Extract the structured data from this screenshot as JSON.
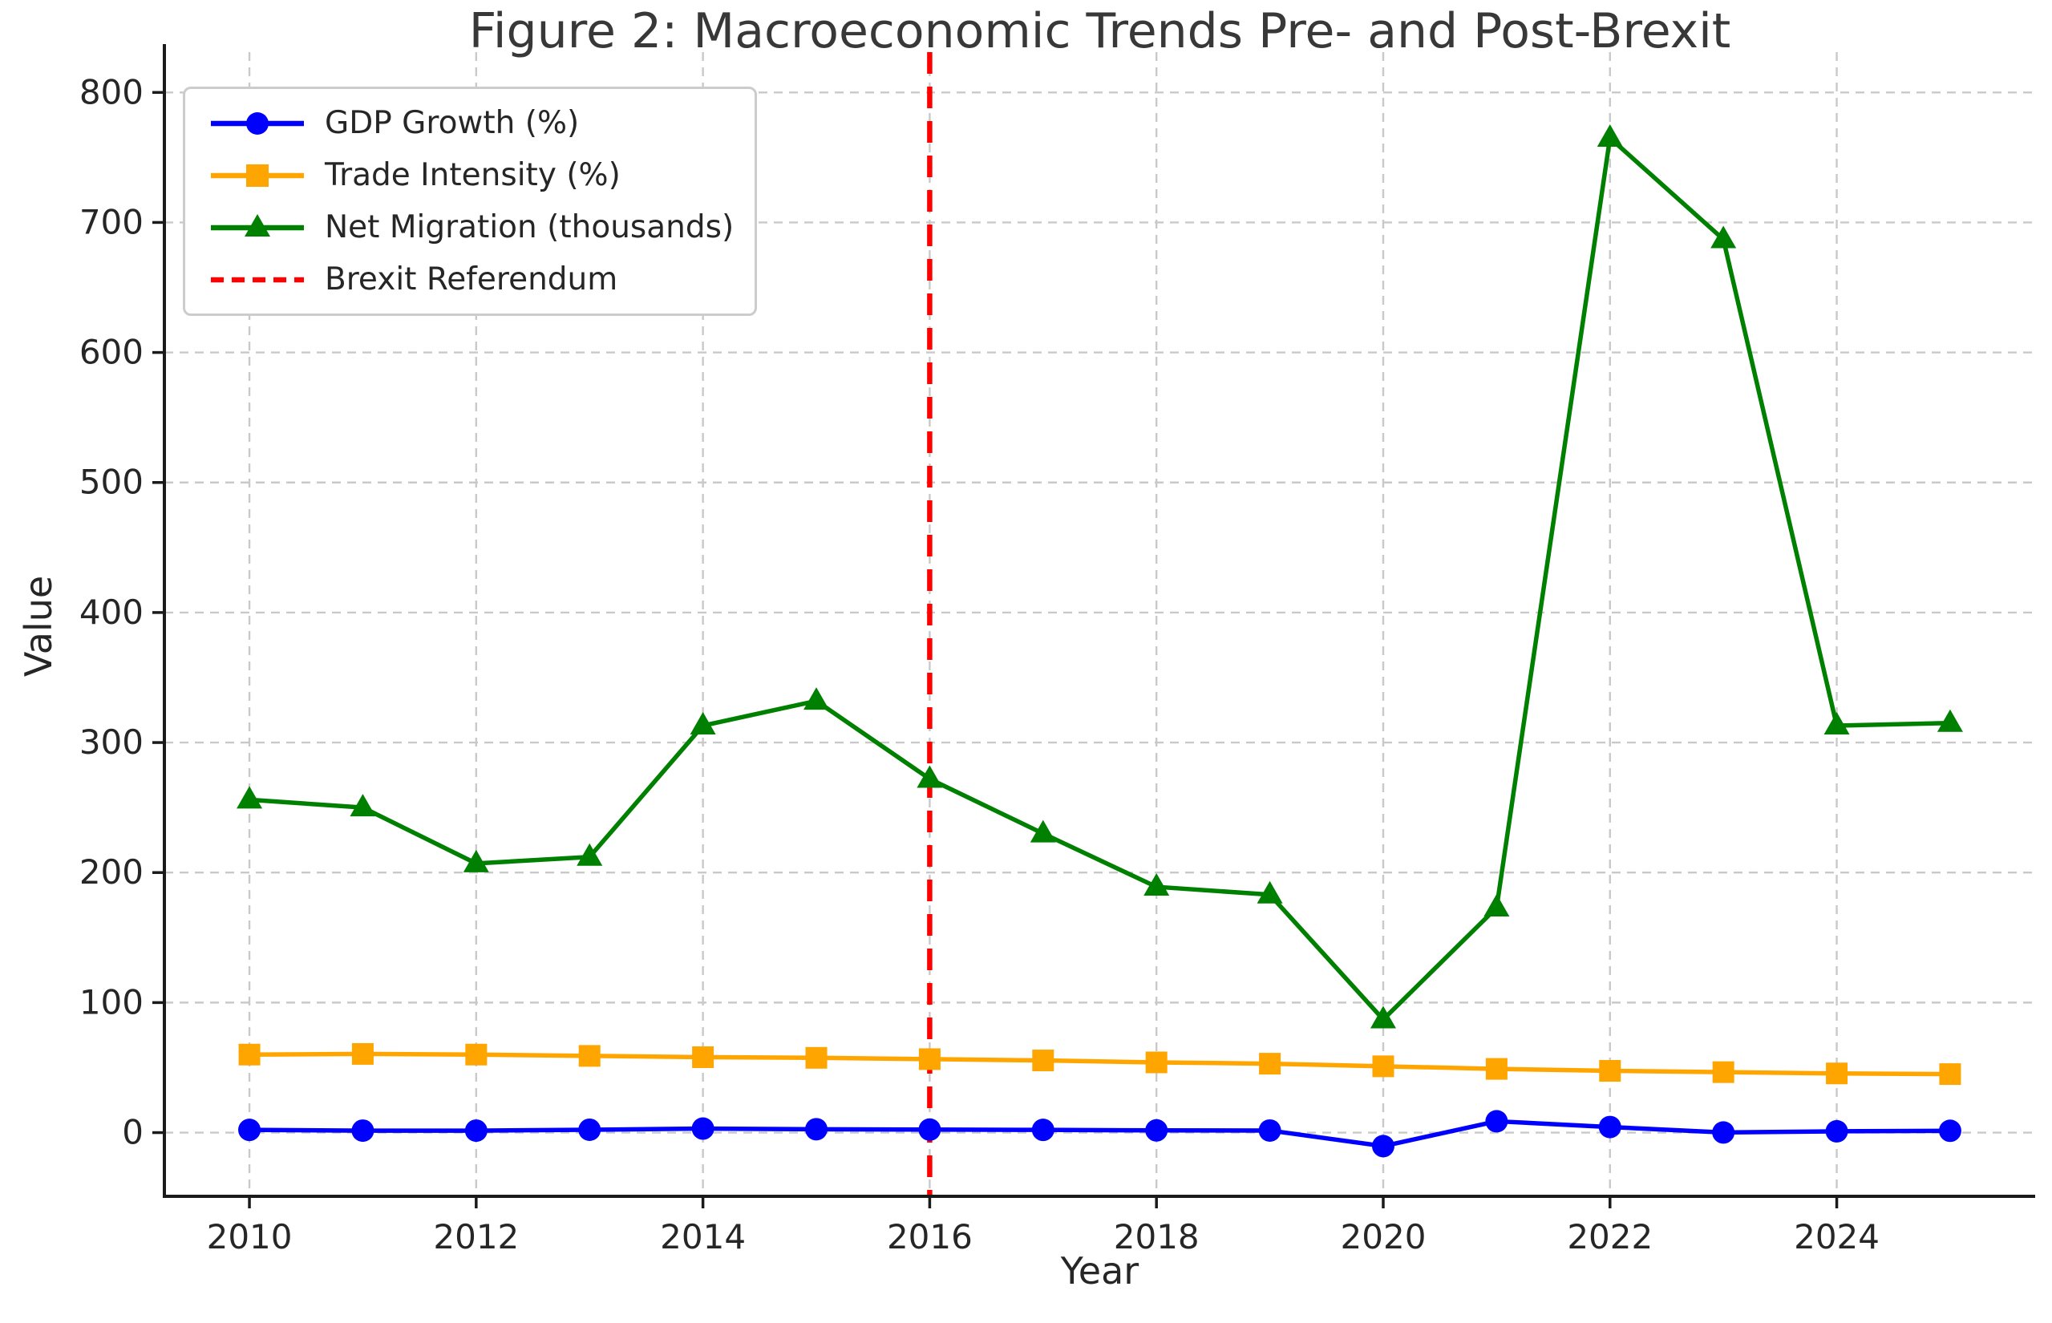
{
  "figure": {
    "title": "Figure 2: Macroeconomic Trends Pre- and Post-Brexit",
    "xlabel": "Year",
    "ylabel": "Value"
  },
  "legend": {
    "position": "upper left",
    "items": [
      {
        "label": "GDP Growth (%)",
        "color": "#0000ff",
        "marker": "circle",
        "line": "solid"
      },
      {
        "label": "Trade Intensity (%)",
        "color": "#ffa500",
        "marker": "square",
        "line": "solid"
      },
      {
        "label": "Net Migration (thousands)",
        "color": "#008000",
        "marker": "triangle",
        "line": "solid"
      },
      {
        "label": "Brexit Referendum",
        "color": "#ff0000",
        "marker": "none",
        "line": "dashed"
      }
    ]
  },
  "chart_data": {
    "type": "line",
    "title": "Figure 2: Macroeconomic Trends Pre- and Post-Brexit",
    "xlabel": "Year",
    "ylabel": "Value",
    "x": [
      2010,
      2011,
      2012,
      2013,
      2014,
      2015,
      2016,
      2017,
      2018,
      2019,
      2020,
      2021,
      2022,
      2023,
      2024,
      2025
    ],
    "series": [
      {
        "name": "GDP Growth (%)",
        "color": "#0000ff",
        "marker": "circle",
        "values": [
          2.1,
          1.5,
          1.5,
          2.2,
          3.1,
          2.6,
          2.3,
          2.1,
          1.7,
          1.6,
          -10.4,
          8.7,
          4.3,
          0.1,
          1.0,
          1.4
        ]
      },
      {
        "name": "Trade Intensity (%)",
        "color": "#ffa500",
        "marker": "square",
        "values": [
          60,
          60.5,
          60,
          59,
          58,
          57.5,
          56.5,
          55.5,
          54,
          53,
          51,
          49,
          47.5,
          46.5,
          45.5,
          45
        ]
      },
      {
        "name": "Net Migration (thousands)",
        "color": "#008000",
        "marker": "triangle",
        "values": [
          256,
          250,
          207,
          212,
          313,
          332,
          272,
          230,
          189,
          183,
          87,
          173,
          765,
          687,
          313,
          315
        ]
      }
    ],
    "vline": {
      "label": "Brexit Referendum",
      "x": 2016,
      "color": "#ff0000",
      "style": "dashed"
    },
    "xticks": [
      2010,
      2012,
      2014,
      2016,
      2018,
      2020,
      2022,
      2024
    ],
    "yticks": [
      0,
      100,
      200,
      300,
      400,
      500,
      600,
      700,
      800
    ],
    "xlim": [
      2009.25,
      2025.75
    ],
    "ylim": [
      -49,
      831
    ],
    "grid": true,
    "grid_style": "dashed",
    "legend_position": "upper left"
  },
  "colors": {
    "background": "#ffffff",
    "grid": "#c9c9c9",
    "spine": "#1a1a1a",
    "text": "#262626",
    "title": "#383838"
  }
}
